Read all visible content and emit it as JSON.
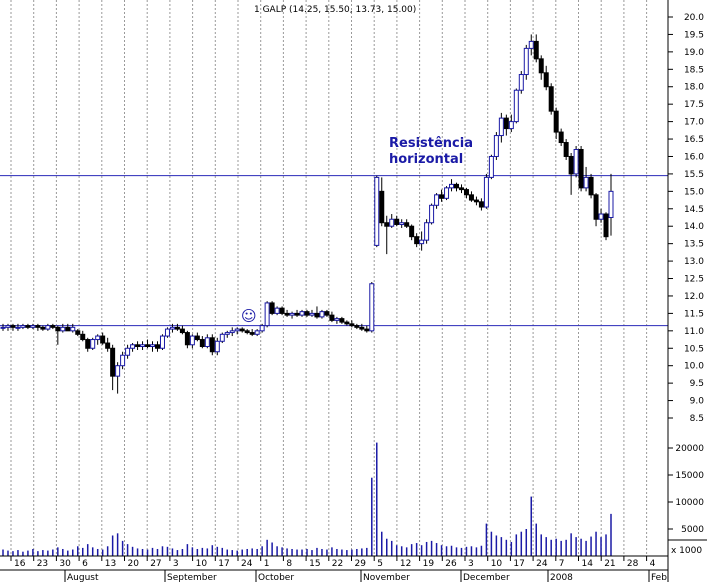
{
  "chart_data": {
    "type": "candlestick",
    "title": "1 GALP (14.25, 15.50, 13.73, 15.00)",
    "price_ylim": [
      8.0,
      20.2
    ],
    "price_ticks": [
      "20.0",
      "19.5",
      "19.0",
      "18.5",
      "18.0",
      "17.5",
      "17.0",
      "16.5",
      "16.0",
      "15.5",
      "15.0",
      "14.5",
      "14.0",
      "13.5",
      "13.0",
      "12.5",
      "12.0",
      "11.5",
      "11.0",
      "10.5",
      "10.0",
      "9.5",
      "9.0",
      "8.5"
    ],
    "volume_ylim": [
      0,
      23000
    ],
    "volume_ticks": [
      "20000",
      "15000",
      "10000",
      "5000"
    ],
    "volume_unit_label": "x 1000",
    "x_day_labels": [
      "16",
      "23",
      "30",
      "6",
      "13",
      "20",
      "27",
      "3",
      "10",
      "17",
      "24",
      "1",
      "8",
      "15",
      "22",
      "29",
      "5",
      "12",
      "19",
      "26",
      "3",
      "10",
      "17",
      "24",
      "7",
      "14",
      "21",
      "28",
      "4"
    ],
    "x_month_labels": [
      "August",
      "September",
      "October",
      "November",
      "December",
      "2008",
      "Feb"
    ],
    "horizontal_lines": [
      15.45,
      11.15
    ],
    "annotation": [
      "Resistência",
      "horizontal"
    ],
    "smiley": "☺",
    "candles": [
      {
        "o": 11.1,
        "h": 11.2,
        "l": 11.0,
        "c": 11.1,
        "v": 1200
      },
      {
        "o": 11.1,
        "h": 11.2,
        "l": 11.0,
        "c": 11.15,
        "v": 1000
      },
      {
        "o": 11.15,
        "h": 11.2,
        "l": 11.0,
        "c": 11.1,
        "v": 900
      },
      {
        "o": 11.1,
        "h": 11.2,
        "l": 11.0,
        "c": 11.1,
        "v": 1100
      },
      {
        "o": 11.1,
        "h": 11.2,
        "l": 11.05,
        "c": 11.15,
        "v": 800
      },
      {
        "o": 11.15,
        "h": 11.2,
        "l": 11.05,
        "c": 11.1,
        "v": 1000
      },
      {
        "o": 11.1,
        "h": 11.2,
        "l": 11.05,
        "c": 11.15,
        "v": 1300
      },
      {
        "o": 11.15,
        "h": 11.2,
        "l": 11.0,
        "c": 11.1,
        "v": 900
      },
      {
        "o": 11.1,
        "h": 11.15,
        "l": 11.0,
        "c": 11.05,
        "v": 1100
      },
      {
        "o": 11.05,
        "h": 11.2,
        "l": 11.0,
        "c": 11.15,
        "v": 1000
      },
      {
        "o": 11.15,
        "h": 11.2,
        "l": 11.05,
        "c": 11.1,
        "v": 1200
      },
      {
        "o": 11.1,
        "h": 11.15,
        "l": 10.6,
        "c": 11.0,
        "v": 1600
      },
      {
        "o": 11.0,
        "h": 11.2,
        "l": 10.95,
        "c": 11.1,
        "v": 1300
      },
      {
        "o": 11.1,
        "h": 11.2,
        "l": 11.0,
        "c": 11.0,
        "v": 1000
      },
      {
        "o": 11.0,
        "h": 11.2,
        "l": 10.95,
        "c": 11.1,
        "v": 1200
      },
      {
        "o": 11.0,
        "h": 11.05,
        "l": 10.85,
        "c": 10.9,
        "v": 1800
      },
      {
        "o": 10.9,
        "h": 11.0,
        "l": 10.7,
        "c": 10.75,
        "v": 1500
      },
      {
        "o": 10.75,
        "h": 10.8,
        "l": 10.4,
        "c": 10.5,
        "v": 2200
      },
      {
        "o": 10.5,
        "h": 10.8,
        "l": 10.45,
        "c": 10.75,
        "v": 1600
      },
      {
        "o": 10.75,
        "h": 10.9,
        "l": 10.6,
        "c": 10.85,
        "v": 1300
      },
      {
        "o": 10.85,
        "h": 10.95,
        "l": 10.6,
        "c": 10.65,
        "v": 1200
      },
      {
        "o": 10.65,
        "h": 10.8,
        "l": 10.4,
        "c": 10.5,
        "v": 1800
      },
      {
        "o": 10.5,
        "h": 10.6,
        "l": 9.3,
        "c": 9.7,
        "v": 3800
      },
      {
        "o": 9.7,
        "h": 10.1,
        "l": 9.2,
        "c": 10.0,
        "v": 4200
      },
      {
        "o": 10.0,
        "h": 10.4,
        "l": 9.9,
        "c": 10.3,
        "v": 2800
      },
      {
        "o": 10.3,
        "h": 10.6,
        "l": 10.2,
        "c": 10.5,
        "v": 2200
      },
      {
        "o": 10.5,
        "h": 10.65,
        "l": 10.4,
        "c": 10.6,
        "v": 1700
      },
      {
        "o": 10.6,
        "h": 10.7,
        "l": 10.45,
        "c": 10.55,
        "v": 1400
      },
      {
        "o": 10.55,
        "h": 10.7,
        "l": 10.45,
        "c": 10.6,
        "v": 1300
      },
      {
        "o": 10.6,
        "h": 10.75,
        "l": 10.5,
        "c": 10.55,
        "v": 1200
      },
      {
        "o": 10.55,
        "h": 10.7,
        "l": 10.4,
        "c": 10.6,
        "v": 1500
      },
      {
        "o": 10.6,
        "h": 10.7,
        "l": 10.4,
        "c": 10.5,
        "v": 1300
      },
      {
        "o": 10.5,
        "h": 10.9,
        "l": 10.45,
        "c": 10.85,
        "v": 1800
      },
      {
        "o": 10.85,
        "h": 11.1,
        "l": 10.8,
        "c": 11.05,
        "v": 1700
      },
      {
        "o": 11.05,
        "h": 11.2,
        "l": 10.95,
        "c": 11.1,
        "v": 1400
      },
      {
        "o": 11.1,
        "h": 11.2,
        "l": 11.0,
        "c": 11.05,
        "v": 1100
      },
      {
        "o": 11.05,
        "h": 11.15,
        "l": 10.9,
        "c": 10.95,
        "v": 1300
      },
      {
        "o": 10.95,
        "h": 11.0,
        "l": 10.5,
        "c": 10.6,
        "v": 2200
      },
      {
        "o": 10.6,
        "h": 10.9,
        "l": 10.5,
        "c": 10.85,
        "v": 1600
      },
      {
        "o": 10.85,
        "h": 10.95,
        "l": 10.7,
        "c": 10.75,
        "v": 1300
      },
      {
        "o": 10.75,
        "h": 10.85,
        "l": 10.5,
        "c": 10.55,
        "v": 1500
      },
      {
        "o": 10.55,
        "h": 10.9,
        "l": 10.5,
        "c": 10.8,
        "v": 1400
      },
      {
        "o": 10.8,
        "h": 10.9,
        "l": 10.3,
        "c": 10.4,
        "v": 2000
      },
      {
        "o": 10.4,
        "h": 10.8,
        "l": 10.3,
        "c": 10.7,
        "v": 1700
      },
      {
        "o": 10.7,
        "h": 10.95,
        "l": 10.65,
        "c": 10.9,
        "v": 1500
      },
      {
        "o": 10.9,
        "h": 11.0,
        "l": 10.8,
        "c": 10.95,
        "v": 1200
      },
      {
        "o": 10.95,
        "h": 11.1,
        "l": 10.85,
        "c": 11.0,
        "v": 1100
      },
      {
        "o": 11.0,
        "h": 11.1,
        "l": 10.9,
        "c": 11.05,
        "v": 1000
      },
      {
        "o": 11.05,
        "h": 11.1,
        "l": 10.95,
        "c": 11.0,
        "v": 1200
      },
      {
        "o": 11.0,
        "h": 11.05,
        "l": 10.9,
        "c": 10.95,
        "v": 1300
      },
      {
        "o": 10.95,
        "h": 11.05,
        "l": 10.85,
        "c": 10.9,
        "v": 1400
      },
      {
        "o": 10.9,
        "h": 11.05,
        "l": 10.85,
        "c": 11.0,
        "v": 1300
      },
      {
        "o": 11.0,
        "h": 11.2,
        "l": 10.95,
        "c": 11.15,
        "v": 1800
      },
      {
        "o": 11.15,
        "h": 11.85,
        "l": 11.1,
        "c": 11.8,
        "v": 3000
      },
      {
        "o": 11.8,
        "h": 11.85,
        "l": 11.45,
        "c": 11.5,
        "v": 2500
      },
      {
        "o": 11.5,
        "h": 11.7,
        "l": 11.45,
        "c": 11.65,
        "v": 1800
      },
      {
        "o": 11.65,
        "h": 11.7,
        "l": 11.45,
        "c": 11.5,
        "v": 1600
      },
      {
        "o": 11.5,
        "h": 11.6,
        "l": 11.4,
        "c": 11.45,
        "v": 1400
      },
      {
        "o": 11.45,
        "h": 11.55,
        "l": 11.35,
        "c": 11.5,
        "v": 1300
      },
      {
        "o": 11.5,
        "h": 11.6,
        "l": 11.4,
        "c": 11.45,
        "v": 1200
      },
      {
        "o": 11.45,
        "h": 11.6,
        "l": 11.4,
        "c": 11.55,
        "v": 1200
      },
      {
        "o": 11.55,
        "h": 11.6,
        "l": 11.4,
        "c": 11.45,
        "v": 1300
      },
      {
        "o": 11.45,
        "h": 11.6,
        "l": 11.4,
        "c": 11.5,
        "v": 1100
      },
      {
        "o": 11.5,
        "h": 11.7,
        "l": 11.35,
        "c": 11.4,
        "v": 1500
      },
      {
        "o": 11.4,
        "h": 11.6,
        "l": 11.35,
        "c": 11.55,
        "v": 1300
      },
      {
        "o": 11.55,
        "h": 11.6,
        "l": 11.4,
        "c": 11.45,
        "v": 1200
      },
      {
        "o": 11.45,
        "h": 11.55,
        "l": 11.25,
        "c": 11.3,
        "v": 1600
      },
      {
        "o": 11.3,
        "h": 11.4,
        "l": 11.2,
        "c": 11.35,
        "v": 1300
      },
      {
        "o": 11.35,
        "h": 11.4,
        "l": 11.2,
        "c": 11.25,
        "v": 1200
      },
      {
        "o": 11.25,
        "h": 11.3,
        "l": 11.15,
        "c": 11.2,
        "v": 1100
      },
      {
        "o": 11.2,
        "h": 11.3,
        "l": 11.1,
        "c": 11.15,
        "v": 1200
      },
      {
        "o": 11.15,
        "h": 11.2,
        "l": 11.05,
        "c": 11.1,
        "v": 1300
      },
      {
        "o": 11.1,
        "h": 11.2,
        "l": 11.0,
        "c": 11.05,
        "v": 1400
      },
      {
        "o": 11.05,
        "h": 11.15,
        "l": 10.95,
        "c": 11.0,
        "v": 1500
      },
      {
        "o": 11.0,
        "h": 12.4,
        "l": 10.95,
        "c": 12.35,
        "v": 14500
      },
      {
        "o": 13.45,
        "h": 15.45,
        "l": 13.4,
        "c": 15.4,
        "v": 21000
      },
      {
        "o": 15.0,
        "h": 15.4,
        "l": 14.0,
        "c": 14.1,
        "v": 4500
      },
      {
        "o": 14.1,
        "h": 14.3,
        "l": 13.2,
        "c": 14.0,
        "v": 3200
      },
      {
        "o": 14.0,
        "h": 14.35,
        "l": 13.95,
        "c": 14.2,
        "v": 2800
      },
      {
        "o": 14.2,
        "h": 14.3,
        "l": 14.0,
        "c": 14.05,
        "v": 2000
      },
      {
        "o": 14.05,
        "h": 14.2,
        "l": 13.95,
        "c": 14.1,
        "v": 1800
      },
      {
        "o": 14.1,
        "h": 14.2,
        "l": 13.95,
        "c": 14.0,
        "v": 1600
      },
      {
        "o": 14.0,
        "h": 14.05,
        "l": 13.6,
        "c": 13.7,
        "v": 2200
      },
      {
        "o": 13.7,
        "h": 13.8,
        "l": 13.4,
        "c": 13.5,
        "v": 2400
      },
      {
        "o": 13.5,
        "h": 13.85,
        "l": 13.3,
        "c": 13.6,
        "v": 2000
      },
      {
        "o": 13.6,
        "h": 14.2,
        "l": 13.5,
        "c": 14.1,
        "v": 2600
      },
      {
        "o": 14.1,
        "h": 14.65,
        "l": 14.05,
        "c": 14.6,
        "v": 2800
      },
      {
        "o": 14.6,
        "h": 14.95,
        "l": 14.5,
        "c": 14.9,
        "v": 2400
      },
      {
        "o": 14.9,
        "h": 15.05,
        "l": 14.7,
        "c": 14.8,
        "v": 2000
      },
      {
        "o": 14.8,
        "h": 15.15,
        "l": 14.75,
        "c": 15.1,
        "v": 1800
      },
      {
        "o": 15.1,
        "h": 15.35,
        "l": 15.0,
        "c": 15.2,
        "v": 1900
      },
      {
        "o": 15.2,
        "h": 15.25,
        "l": 15.0,
        "c": 15.1,
        "v": 1600
      },
      {
        "o": 15.1,
        "h": 15.2,
        "l": 14.95,
        "c": 15.05,
        "v": 1500
      },
      {
        "o": 15.05,
        "h": 15.1,
        "l": 14.8,
        "c": 14.9,
        "v": 1700
      },
      {
        "o": 14.9,
        "h": 15.0,
        "l": 14.7,
        "c": 14.75,
        "v": 1800
      },
      {
        "o": 14.75,
        "h": 14.85,
        "l": 14.6,
        "c": 14.7,
        "v": 1600
      },
      {
        "o": 14.7,
        "h": 14.8,
        "l": 14.45,
        "c": 14.55,
        "v": 1900
      },
      {
        "o": 14.55,
        "h": 15.5,
        "l": 14.5,
        "c": 15.4,
        "v": 6000
      },
      {
        "o": 15.4,
        "h": 16.05,
        "l": 15.35,
        "c": 16.0,
        "v": 4500
      },
      {
        "o": 16.0,
        "h": 16.7,
        "l": 15.9,
        "c": 16.6,
        "v": 3800
      },
      {
        "o": 16.6,
        "h": 17.25,
        "l": 16.4,
        "c": 17.1,
        "v": 3500
      },
      {
        "o": 17.1,
        "h": 17.2,
        "l": 16.6,
        "c": 16.8,
        "v": 3000
      },
      {
        "o": 16.8,
        "h": 17.2,
        "l": 16.7,
        "c": 17.0,
        "v": 2600
      },
      {
        "o": 17.0,
        "h": 17.95,
        "l": 16.95,
        "c": 17.9,
        "v": 4000
      },
      {
        "o": 17.9,
        "h": 18.45,
        "l": 17.8,
        "c": 18.35,
        "v": 4500
      },
      {
        "o": 18.35,
        "h": 19.2,
        "l": 18.2,
        "c": 19.1,
        "v": 5000
      },
      {
        "o": 19.1,
        "h": 19.5,
        "l": 18.9,
        "c": 19.3,
        "v": 11000
      },
      {
        "o": 19.3,
        "h": 19.5,
        "l": 18.7,
        "c": 18.8,
        "v": 6000
      },
      {
        "o": 18.8,
        "h": 18.9,
        "l": 18.2,
        "c": 18.4,
        "v": 4000
      },
      {
        "o": 18.4,
        "h": 18.6,
        "l": 17.9,
        "c": 18.0,
        "v": 3500
      },
      {
        "o": 18.0,
        "h": 18.1,
        "l": 17.2,
        "c": 17.3,
        "v": 3000
      },
      {
        "o": 17.3,
        "h": 17.4,
        "l": 16.5,
        "c": 16.7,
        "v": 3200
      },
      {
        "o": 16.7,
        "h": 16.8,
        "l": 16.3,
        "c": 16.4,
        "v": 2800
      },
      {
        "o": 16.4,
        "h": 16.5,
        "l": 15.9,
        "c": 16.0,
        "v": 3000
      },
      {
        "o": 16.0,
        "h": 16.1,
        "l": 14.9,
        "c": 15.5,
        "v": 4200
      },
      {
        "o": 15.5,
        "h": 16.3,
        "l": 15.4,
        "c": 16.2,
        "v": 3500
      },
      {
        "o": 16.2,
        "h": 16.3,
        "l": 15.0,
        "c": 15.1,
        "v": 3200
      },
      {
        "o": 15.1,
        "h": 15.7,
        "l": 15.0,
        "c": 15.4,
        "v": 2800
      },
      {
        "o": 15.4,
        "h": 15.5,
        "l": 14.8,
        "c": 14.9,
        "v": 3600
      },
      {
        "o": 14.9,
        "h": 14.95,
        "l": 14.0,
        "c": 14.2,
        "v": 4500
      },
      {
        "o": 14.2,
        "h": 14.5,
        "l": 14.1,
        "c": 14.35,
        "v": 3500
      },
      {
        "o": 14.35,
        "h": 14.4,
        "l": 13.6,
        "c": 13.7,
        "v": 4000
      },
      {
        "o": 14.25,
        "h": 15.5,
        "l": 13.73,
        "c": 15.0,
        "v": 7800
      }
    ]
  }
}
